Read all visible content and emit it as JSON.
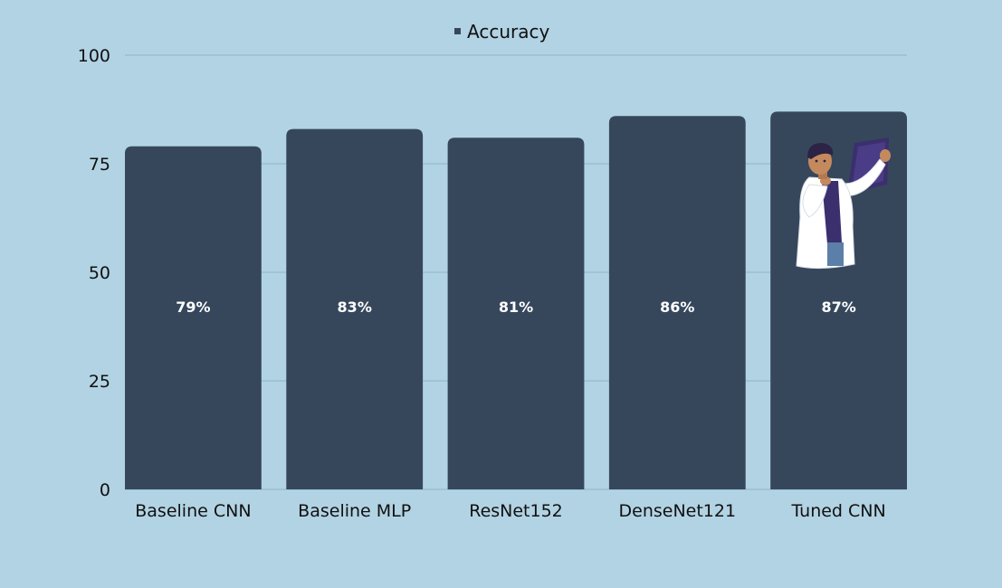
{
  "chart_data": {
    "type": "bar",
    "categories": [
      "Baseline CNN",
      "Baseline MLP",
      "ResNet152",
      "DenseNet121",
      "Tuned CNN"
    ],
    "series": [
      {
        "name": "Accuracy",
        "values": [
          79,
          83,
          81,
          86,
          87
        ],
        "data_labels": [
          "79%",
          "83%",
          "81%",
          "86%",
          "87%"
        ]
      }
    ],
    "ylim": [
      0,
      100
    ],
    "yticks": [
      0,
      25,
      50,
      75,
      100
    ],
    "ytick_labels": [
      "0",
      "25",
      "50",
      "75",
      "100"
    ],
    "grid": true,
    "legend": "top-center",
    "colors": {
      "background": "#b2d3e3",
      "bar": "#36475c",
      "grid": "#8fb6c7",
      "text": "#111111",
      "bar_label": "#ffffff"
    },
    "decoration": {
      "icon": "doctor-with-xray-icon",
      "on_category": "Tuned CNN"
    }
  }
}
